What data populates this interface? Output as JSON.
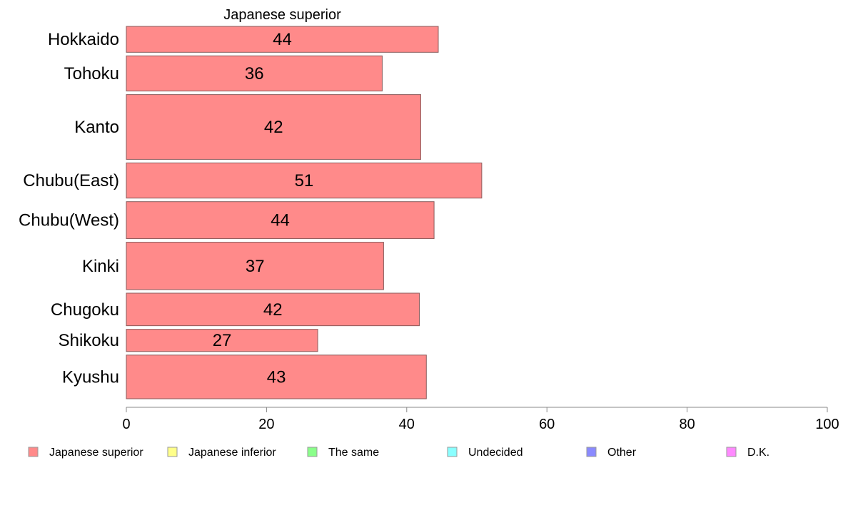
{
  "chart_data": {
    "type": "bar",
    "orientation": "horizontal",
    "panel_title": "Japanese superior",
    "categories": [
      "Hokkaido",
      "Tohoku",
      "Kanto",
      "Chubu(East)",
      "Chubu(West)",
      "Kinki",
      "Chugoku",
      "Shikoku",
      "Kyushu"
    ],
    "sample_weights": [
      0.7,
      0.95,
      1.75,
      0.95,
      1.0,
      1.28,
      0.88,
      0.6,
      1.18
    ],
    "series": [
      {
        "name": "Japanese superior",
        "color": "#ff8a8a",
        "values": [
          44.5,
          36.5,
          42.0,
          50.7,
          43.9,
          36.7,
          41.8,
          27.3,
          42.8
        ],
        "data_labels": [
          "44",
          "36",
          "42",
          "51",
          "44",
          "37",
          "42",
          "27",
          "43"
        ]
      }
    ],
    "xlim": [
      0,
      100
    ],
    "x_ticks": [
      0,
      20,
      40,
      60,
      80,
      100
    ],
    "x_tick_labels": [
      "0",
      "20",
      "40",
      "60",
      "80",
      "100"
    ],
    "grid": false,
    "legend_position": "bottom"
  },
  "legend": {
    "items": [
      {
        "label": "Japanese superior",
        "color": "#ff8a8a"
      },
      {
        "label": "Japanese inferior",
        "color": "#ffff8a"
      },
      {
        "label": "The same",
        "color": "#8aff8a"
      },
      {
        "label": "Undecided",
        "color": "#8affff"
      },
      {
        "label": "Other",
        "color": "#8a8aff"
      },
      {
        "label": "D.K.",
        "color": "#ff8aff"
      }
    ]
  },
  "colors": {
    "bar_stroke": "#8a5a5a",
    "axis": "#888888"
  }
}
